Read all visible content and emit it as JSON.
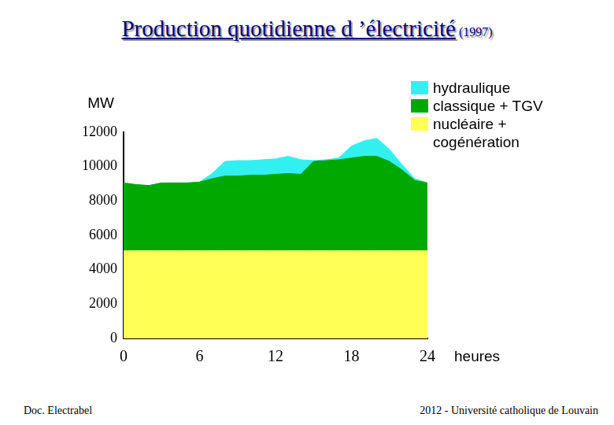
{
  "chart_data": {
    "type": "area",
    "title": "Production quotidienne d ’électricité",
    "subtitle": "(1997)",
    "x_label": "heures",
    "y_label": "MW",
    "x": [
      0,
      1,
      2,
      3,
      4,
      5,
      6,
      7,
      8,
      9,
      10,
      11,
      12,
      13,
      14,
      15,
      16,
      17,
      18,
      19,
      20,
      21,
      22,
      23,
      24
    ],
    "xlim": [
      0,
      24
    ],
    "xticks": [
      0,
      6,
      12,
      18,
      24
    ],
    "ylim": [
      0,
      12000
    ],
    "yticks": [
      0,
      2000,
      4000,
      6000,
      8000,
      10000,
      12000
    ],
    "stacked": true,
    "grid": false,
    "legend": "upper right",
    "series": [
      {
        "name": "hydraulique",
        "color": "#33f0f0",
        "values": [
          0,
          0,
          0,
          0,
          0,
          0,
          0,
          300,
          850,
          900,
          850,
          900,
          900,
          1000,
          850,
          50,
          50,
          100,
          700,
          900,
          1050,
          700,
          300,
          100,
          0
        ]
      },
      {
        "name": "classique + TGV",
        "color": "#00a800",
        "values": [
          3950,
          3850,
          3800,
          3950,
          3950,
          3950,
          4000,
          4200,
          4350,
          4350,
          4400,
          4400,
          4450,
          4500,
          4450,
          5200,
          5250,
          5300,
          5400,
          5500,
          5500,
          5200,
          4700,
          4100,
          3950
        ]
      },
      {
        "name": "nucléaire + cogénération",
        "color": "#ffff55",
        "values": [
          5100,
          5100,
          5100,
          5100,
          5100,
          5100,
          5100,
          5100,
          5100,
          5100,
          5100,
          5100,
          5100,
          5100,
          5100,
          5100,
          5100,
          5100,
          5100,
          5100,
          5100,
          5100,
          5100,
          5100,
          5100
        ]
      }
    ]
  },
  "footer": {
    "left": "Doc. Electrabel",
    "right": "2012 - Université catholique de Louvain"
  }
}
